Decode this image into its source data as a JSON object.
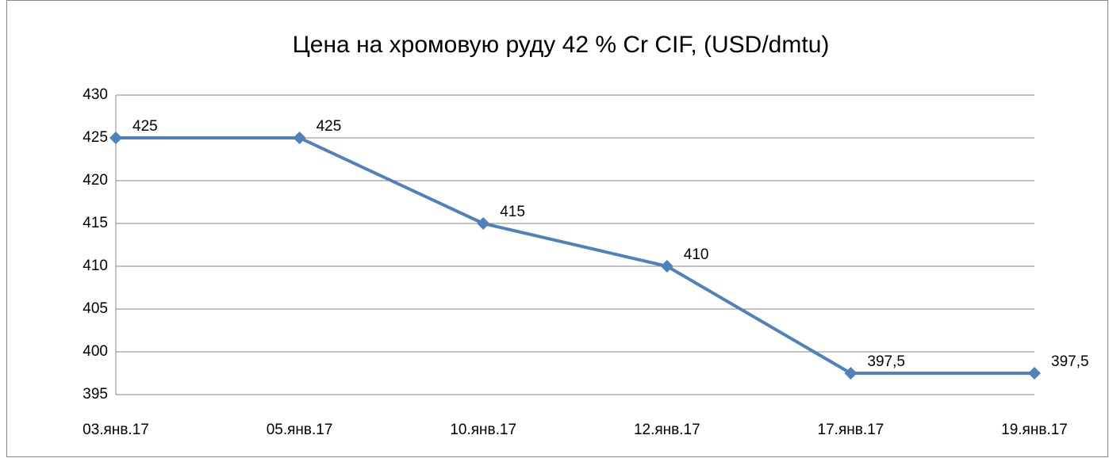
{
  "chart_data": {
    "type": "line",
    "title": "Цена на хромовую руду 42 % Cr CIF, (USD/dmtu)",
    "categories": [
      "03.янв.17",
      "05.янв.17",
      "10.янв.17",
      "12.янв.17",
      "17.янв.17",
      "19.янв.17"
    ],
    "values": [
      425,
      425,
      415,
      410,
      397.5,
      397.5
    ],
    "value_labels": [
      "425",
      "425",
      "415",
      "410",
      "397,5",
      "397,5"
    ],
    "color": "#4f81bd",
    "ylim": [
      395,
      430
    ],
    "yticks": [
      395,
      400,
      405,
      410,
      415,
      420,
      425,
      430
    ],
    "grid": true
  }
}
